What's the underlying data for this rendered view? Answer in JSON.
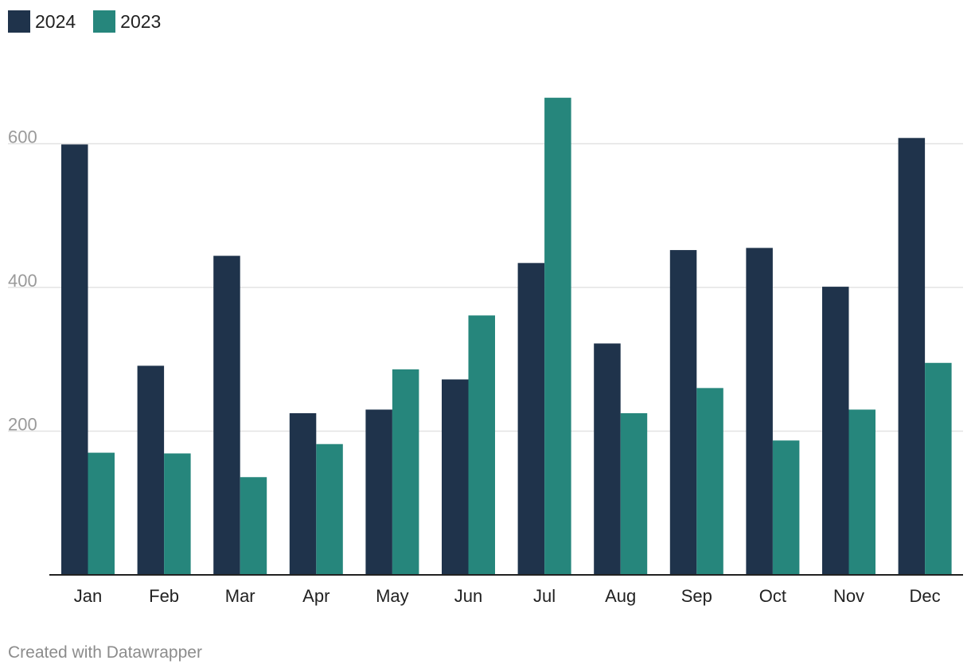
{
  "chart_data": {
    "type": "bar",
    "categories": [
      "Jan",
      "Feb",
      "Mar",
      "Apr",
      "May",
      "Jun",
      "Jul",
      "Aug",
      "Sep",
      "Oct",
      "Nov",
      "Dec"
    ],
    "series": [
      {
        "name": "2024",
        "color": "#1f334b",
        "values": [
          599,
          291,
          444,
          225,
          230,
          272,
          434,
          322,
          452,
          455,
          401,
          608
        ]
      },
      {
        "name": "2023",
        "color": "#26867c",
        "values": [
          170,
          169,
          136,
          182,
          286,
          361,
          664,
          225,
          260,
          187,
          230,
          295
        ]
      }
    ],
    "y_ticks": [
      200,
      400,
      600
    ],
    "ylim": [
      0,
      740
    ],
    "grid": true,
    "legend": "top-left"
  },
  "footer": {
    "credit": "Created with Datawrapper"
  }
}
